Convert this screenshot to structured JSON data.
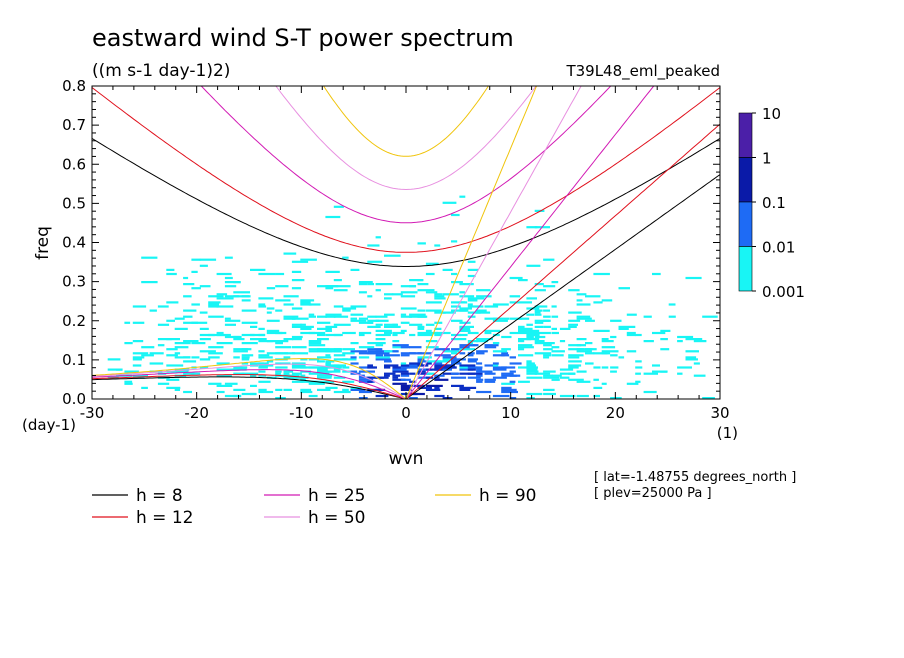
{
  "chart_data": {
    "type": "heatmap",
    "title": "eastward wind S-T power spectrum",
    "units": "((m s-1 day-1)2)",
    "dataset": "T39L48_eml_peaked",
    "xlabel": "wvn",
    "ylabel": "freq",
    "x_unit": "(1)",
    "y_unit": "(day-1)",
    "xlim": [
      -30,
      30
    ],
    "ylim": [
      0,
      0.8
    ],
    "x_ticks": [
      "-30",
      "-20",
      "-10",
      "0",
      "10",
      "20",
      "30"
    ],
    "y_ticks": [
      "0.0",
      "0.1",
      "0.2",
      "0.3",
      "0.4",
      "0.5",
      "0.6",
      "0.7",
      "0.8"
    ],
    "colorbar": {
      "levels": [
        "10",
        "1",
        "0.1",
        "0.01",
        "0.001"
      ],
      "colors": [
        "#4B1FA8",
        "#0A1AA8",
        "#0B2FC4",
        "#1E6BF5",
        "#18F5F5"
      ]
    },
    "dispersion_curves": [
      {
        "name": "h =  8",
        "h": 8,
        "color": "#000000"
      },
      {
        "name": "h = 12",
        "h": 12,
        "color": "#E0101C"
      },
      {
        "name": "h = 25",
        "h": 25,
        "color": "#D21AB4"
      },
      {
        "name": "h = 50",
        "h": 50,
        "color": "#E890E0"
      },
      {
        "name": "h = 90",
        "h": 90,
        "color": "#F0C40C"
      }
    ],
    "annotations": [
      "[ lat=-1.48755 degrees_north ]",
      "[ plev=25000 Pa ]"
    ]
  }
}
